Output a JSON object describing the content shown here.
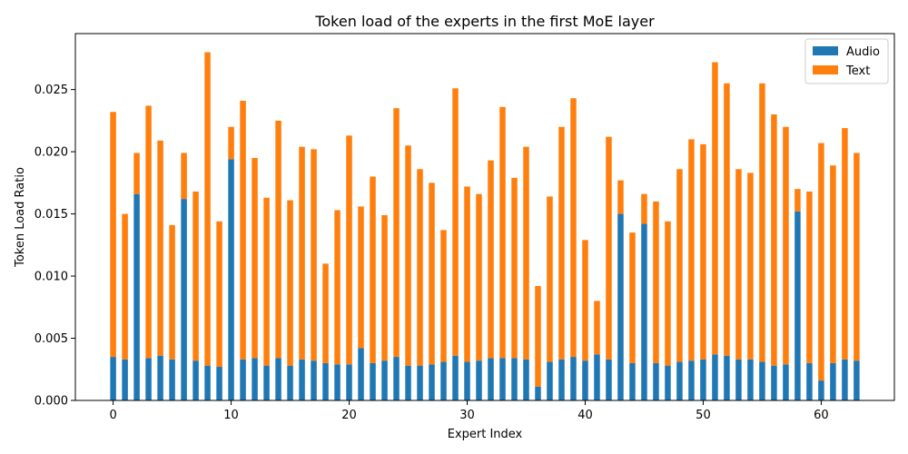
{
  "chart_data": {
    "type": "bar",
    "stacked": true,
    "title": "Token load of the experts in the first MoE layer",
    "xlabel": "Expert Index",
    "ylabel": "Token Load Ratio",
    "x": [
      0,
      1,
      2,
      3,
      4,
      5,
      6,
      7,
      8,
      9,
      10,
      11,
      12,
      13,
      14,
      15,
      16,
      17,
      18,
      19,
      20,
      21,
      22,
      23,
      24,
      25,
      26,
      27,
      28,
      29,
      30,
      31,
      32,
      33,
      34,
      35,
      36,
      37,
      38,
      39,
      40,
      41,
      42,
      43,
      44,
      45,
      46,
      47,
      48,
      49,
      50,
      51,
      52,
      53,
      54,
      55,
      56,
      57,
      58,
      59,
      60,
      61,
      62,
      63
    ],
    "xticks": [
      0,
      10,
      20,
      30,
      40,
      50,
      60
    ],
    "yticks": [
      0.0,
      0.005,
      0.01,
      0.015,
      0.02,
      0.025
    ],
    "ytick_labels": [
      "0.000",
      "0.005",
      "0.010",
      "0.015",
      "0.020",
      "0.025"
    ],
    "xlim": [
      -3.2,
      66.2
    ],
    "ylim": [
      0,
      0.0295
    ],
    "legend_position": "top-right",
    "series": [
      {
        "name": "Audio",
        "color": "#1f77b4",
        "values": [
          0.0035,
          0.0033,
          0.0166,
          0.0034,
          0.0036,
          0.0033,
          0.0162,
          0.0032,
          0.0028,
          0.0027,
          0.0194,
          0.0033,
          0.0034,
          0.0028,
          0.0034,
          0.0028,
          0.0033,
          0.0032,
          0.003,
          0.0029,
          0.0029,
          0.0042,
          0.003,
          0.0032,
          0.0035,
          0.0028,
          0.0028,
          0.0029,
          0.0031,
          0.0036,
          0.0031,
          0.0032,
          0.0034,
          0.0034,
          0.0034,
          0.0033,
          0.0011,
          0.0031,
          0.0033,
          0.0035,
          0.0032,
          0.0037,
          0.0033,
          0.015,
          0.003,
          0.0142,
          0.003,
          0.0028,
          0.0031,
          0.0032,
          0.0033,
          0.0037,
          0.0036,
          0.0033,
          0.0033,
          0.0031,
          0.0028,
          0.0029,
          0.0152,
          0.003,
          0.0016,
          0.003,
          0.0033,
          0.0032
        ]
      },
      {
        "name": "Text",
        "color": "#ff7f0e",
        "values": [
          0.0197,
          0.0117,
          0.0033,
          0.0203,
          0.0173,
          0.0108,
          0.0037,
          0.0136,
          0.0252,
          0.0117,
          0.0026,
          0.0208,
          0.0161,
          0.0135,
          0.0191,
          0.0133,
          0.0171,
          0.017,
          0.008,
          0.0124,
          0.0184,
          0.0114,
          0.015,
          0.0117,
          0.02,
          0.0177,
          0.0158,
          0.0146,
          0.0106,
          0.0215,
          0.0141,
          0.0134,
          0.0159,
          0.0202,
          0.0145,
          0.0171,
          0.0081,
          0.0133,
          0.0187,
          0.0208,
          0.0097,
          0.0043,
          0.0179,
          0.0027,
          0.0105,
          0.0024,
          0.013,
          0.0116,
          0.0155,
          0.0178,
          0.0173,
          0.0235,
          0.0219,
          0.0153,
          0.015,
          0.0224,
          0.0202,
          0.0191,
          0.0018,
          0.0138,
          0.0191,
          0.0159,
          0.0186,
          0.0167
        ]
      }
    ]
  }
}
